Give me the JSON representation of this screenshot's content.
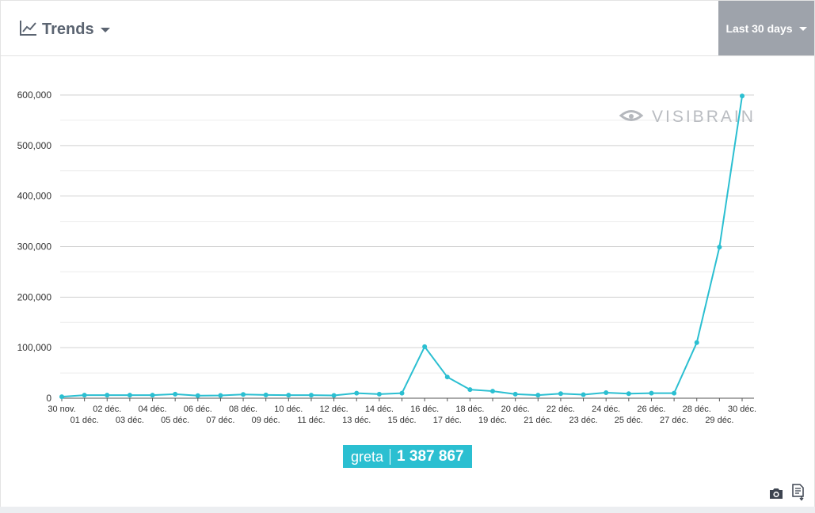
{
  "header": {
    "title": "Trends",
    "range_label": "Last 30 days"
  },
  "watermark": "VISIBRAIN",
  "legend": {
    "name": "greta",
    "total": "1 387 867"
  },
  "icons": [
    "trends-icon",
    "camera-icon",
    "export-document-icon",
    "eye-logo-icon"
  ],
  "colors": {
    "series": "#2bbfd1",
    "accent": "#9ea3ab",
    "text": "#5b6471"
  },
  "chart_data": {
    "type": "line",
    "x": [
      "30 nov.",
      "01 déc.",
      "02 déc.",
      "03 déc.",
      "04 déc.",
      "05 déc.",
      "06 déc.",
      "07 déc.",
      "08 déc.",
      "09 déc.",
      "10 déc.",
      "11 déc.",
      "12 déc.",
      "13 déc.",
      "14 déc.",
      "15 déc.",
      "16 déc.",
      "17 déc.",
      "18 déc.",
      "19 déc.",
      "20 déc.",
      "21 déc.",
      "22 déc.",
      "23 déc.",
      "24 déc.",
      "25 déc.",
      "26 déc.",
      "27 déc.",
      "28 déc.",
      "29 déc.",
      "30 déc."
    ],
    "series": [
      {
        "name": "greta",
        "values": [
          3000,
          6000,
          6000,
          6000,
          6000,
          8000,
          5000,
          5500,
          7500,
          6500,
          6000,
          6000,
          5500,
          10000,
          8000,
          10000,
          102000,
          42000,
          17000,
          14000,
          8000,
          6000,
          9000,
          7000,
          11000,
          9000,
          10000,
          10000,
          110000,
          299000,
          598000
        ]
      }
    ],
    "y_ticks": [
      "0",
      "100,000",
      "200,000",
      "300,000",
      "400,000",
      "500,000",
      "600,000"
    ],
    "ylim": [
      0,
      600000
    ],
    "grid": true,
    "title": "",
    "xlabel": "",
    "ylabel": ""
  }
}
